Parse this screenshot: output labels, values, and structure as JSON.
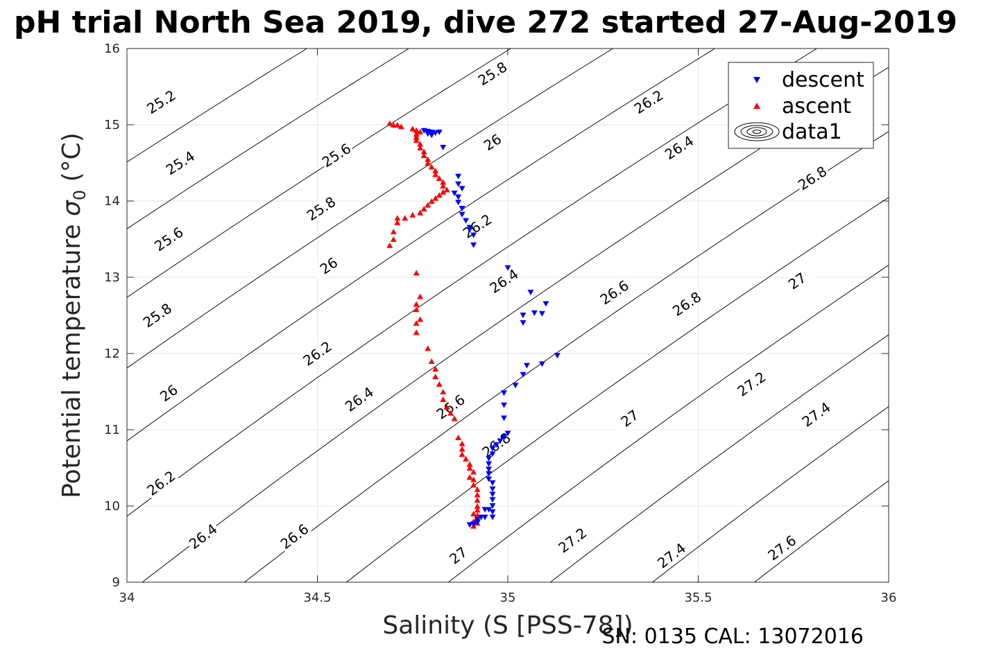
{
  "chart_data": {
    "type": "scatter",
    "title": "pH trial North Sea 2019, dive 272 started 27-Aug-2019",
    "xlabel": "Salinity (S [PSS-78])",
    "ylabel_main": "Potential temperature",
    "ylabel_sigma": "σ",
    "ylabel_sub": "0",
    "ylabel_unit": "(°C)",
    "xlim": [
      34,
      36
    ],
    "ylim": [
      9,
      16
    ],
    "xticks": [
      34,
      34.5,
      35,
      35.5,
      36
    ],
    "xtick_labels": [
      "34",
      "34.5",
      "35",
      "35.5",
      "36"
    ],
    "yticks": [
      9,
      10,
      11,
      12,
      13,
      14,
      15,
      16
    ],
    "ytick_labels": [
      "9",
      "10",
      "11",
      "12",
      "13",
      "14",
      "15",
      "16"
    ],
    "grid": true,
    "legend_position": "top-right",
    "annotation": "SN: 0135  CAL: 13072016",
    "series": [
      {
        "name": "descent",
        "marker": "triangle-down",
        "color": "#0000ff",
        "points": [
          [
            34.78,
            14.92
          ],
          [
            34.79,
            14.91
          ],
          [
            34.8,
            14.9
          ],
          [
            34.81,
            14.89
          ],
          [
            34.82,
            14.9
          ],
          [
            34.8,
            14.86
          ],
          [
            34.79,
            14.88
          ],
          [
            34.83,
            14.7
          ],
          [
            34.87,
            14.32
          ],
          [
            34.87,
            14.22
          ],
          [
            34.88,
            14.16
          ],
          [
            34.86,
            14.1
          ],
          [
            34.87,
            14.05
          ],
          [
            34.87,
            13.98
          ],
          [
            34.88,
            13.9
          ],
          [
            34.88,
            13.82
          ],
          [
            34.89,
            13.74
          ],
          [
            34.9,
            13.65
          ],
          [
            34.91,
            13.55
          ],
          [
            34.9,
            13.62
          ],
          [
            34.91,
            13.42
          ],
          [
            35.0,
            13.12
          ],
          [
            35.06,
            12.8
          ],
          [
            35.1,
            12.65
          ],
          [
            35.07,
            12.53
          ],
          [
            35.04,
            12.5
          ],
          [
            35.09,
            12.52
          ],
          [
            35.04,
            12.4
          ],
          [
            35.13,
            11.97
          ],
          [
            35.09,
            11.86
          ],
          [
            35.05,
            11.84
          ],
          [
            35.04,
            11.72
          ],
          [
            35.02,
            11.58
          ],
          [
            34.99,
            11.48
          ],
          [
            34.99,
            11.32
          ],
          [
            34.99,
            11.15
          ],
          [
            35.0,
            10.95
          ],
          [
            34.99,
            10.9
          ],
          [
            34.98,
            10.85
          ],
          [
            34.97,
            10.8
          ],
          [
            34.96,
            10.75
          ],
          [
            34.96,
            10.68
          ],
          [
            34.95,
            10.62
          ],
          [
            34.95,
            10.55
          ],
          [
            34.95,
            10.48
          ],
          [
            34.95,
            10.42
          ],
          [
            34.95,
            10.35
          ],
          [
            34.96,
            10.3
          ],
          [
            34.96,
            10.22
          ],
          [
            34.96,
            10.15
          ],
          [
            34.96,
            10.08
          ],
          [
            34.96,
            10.0
          ],
          [
            34.95,
            9.95
          ],
          [
            34.96,
            9.92
          ],
          [
            34.94,
            9.95
          ],
          [
            34.96,
            9.85
          ],
          [
            34.94,
            9.85
          ],
          [
            34.93,
            9.85
          ],
          [
            34.92,
            9.82
          ],
          [
            34.92,
            9.78
          ],
          [
            34.91,
            9.76
          ],
          [
            34.9,
            9.75
          ]
        ]
      },
      {
        "name": "ascent",
        "marker": "triangle-up",
        "color": "#ff0000",
        "points": [
          [
            34.69,
            15.02
          ],
          [
            34.7,
            15.0
          ],
          [
            34.71,
            15.0
          ],
          [
            34.72,
            14.98
          ],
          [
            34.75,
            14.95
          ],
          [
            34.76,
            14.93
          ],
          [
            34.77,
            14.91
          ],
          [
            34.76,
            14.88
          ],
          [
            34.76,
            14.84
          ],
          [
            34.76,
            14.8
          ],
          [
            34.77,
            14.75
          ],
          [
            34.77,
            14.7
          ],
          [
            34.78,
            14.65
          ],
          [
            34.78,
            14.6
          ],
          [
            34.79,
            14.55
          ],
          [
            34.79,
            14.5
          ],
          [
            34.8,
            14.45
          ],
          [
            34.81,
            14.4
          ],
          [
            34.81,
            14.35
          ],
          [
            34.82,
            14.3
          ],
          [
            34.83,
            14.25
          ],
          [
            34.83,
            14.2
          ],
          [
            34.84,
            14.15
          ],
          [
            34.83,
            14.12
          ],
          [
            34.82,
            14.08
          ],
          [
            34.81,
            14.04
          ],
          [
            34.8,
            14.0
          ],
          [
            34.79,
            13.95
          ],
          [
            34.78,
            13.9
          ],
          [
            34.77,
            13.85
          ],
          [
            34.75,
            13.82
          ],
          [
            34.73,
            13.78
          ],
          [
            34.71,
            13.78
          ],
          [
            34.71,
            13.72
          ],
          [
            34.7,
            13.6
          ],
          [
            34.7,
            13.5
          ],
          [
            34.69,
            13.42
          ],
          [
            34.76,
            13.06
          ],
          [
            34.77,
            12.75
          ],
          [
            34.76,
            12.65
          ],
          [
            34.76,
            12.58
          ],
          [
            34.77,
            12.45
          ],
          [
            34.76,
            12.4
          ],
          [
            34.76,
            12.28
          ],
          [
            34.79,
            12.07
          ],
          [
            34.8,
            11.9
          ],
          [
            34.81,
            11.8
          ],
          [
            34.81,
            11.7
          ],
          [
            34.82,
            11.6
          ],
          [
            34.83,
            11.5
          ],
          [
            34.83,
            11.4
          ],
          [
            34.84,
            11.3
          ],
          [
            34.85,
            11.22
          ],
          [
            34.86,
            11.15
          ],
          [
            34.87,
            10.9
          ],
          [
            34.88,
            10.82
          ],
          [
            34.88,
            10.75
          ],
          [
            34.88,
            10.68
          ],
          [
            34.89,
            10.62
          ],
          [
            34.9,
            10.55
          ],
          [
            34.9,
            10.5
          ],
          [
            34.91,
            10.45
          ],
          [
            34.9,
            10.38
          ],
          [
            34.91,
            10.35
          ],
          [
            34.91,
            10.28
          ],
          [
            34.92,
            10.22
          ],
          [
            34.92,
            10.15
          ],
          [
            34.92,
            10.08
          ],
          [
            34.92,
            10.0
          ],
          [
            34.92,
            9.95
          ],
          [
            34.91,
            9.9
          ],
          [
            34.92,
            9.88
          ],
          [
            34.92,
            9.85
          ],
          [
            34.91,
            9.8
          ],
          [
            34.92,
            9.78
          ],
          [
            34.91,
            9.74
          ]
        ]
      },
      {
        "name": "data1",
        "marker": "contour"
      }
    ],
    "contours": {
      "levels": [
        25.2,
        25.4,
        25.6,
        25.8,
        26,
        26.2,
        26.4,
        26.6,
        26.8,
        27,
        27.2,
        27.4,
        27.6
      ],
      "line_color": "#000000",
      "labels": [
        {
          "text": "25.2",
          "s": 34.09,
          "t": 15.3
        },
        {
          "text": "25.4",
          "s": 34.14,
          "t": 14.5
        },
        {
          "text": "25.6",
          "s": 34.11,
          "t": 13.5
        },
        {
          "text": "25.8",
          "s": 34.08,
          "t": 12.5
        },
        {
          "text": "26",
          "s": 34.11,
          "t": 11.48
        },
        {
          "text": "26.2",
          "s": 34.09,
          "t": 10.3
        },
        {
          "text": "26.4",
          "s": 34.2,
          "t": 9.6
        },
        {
          "text": "25.6",
          "s": 34.55,
          "t": 14.6
        },
        {
          "text": "25.8",
          "s": 34.51,
          "t": 13.9
        },
        {
          "text": "26",
          "s": 34.53,
          "t": 13.15
        },
        {
          "text": "26.2",
          "s": 34.5,
          "t": 12.0
        },
        {
          "text": "26.4",
          "s": 34.61,
          "t": 11.4
        },
        {
          "text": "26.6",
          "s": 34.44,
          "t": 9.6
        },
        {
          "text": "25.8",
          "s": 34.96,
          "t": 15.67
        },
        {
          "text": "26",
          "s": 34.96,
          "t": 14.77
        },
        {
          "text": "26.2",
          "s": 34.92,
          "t": 13.67
        },
        {
          "text": "26.4",
          "s": 34.99,
          "t": 12.95
        },
        {
          "text": "26.6",
          "s": 34.85,
          "t": 11.3
        },
        {
          "text": "26.8",
          "s": 34.97,
          "t": 10.8
        },
        {
          "text": "27",
          "s": 34.87,
          "t": 9.35
        },
        {
          "text": "26.2",
          "s": 35.37,
          "t": 15.3
        },
        {
          "text": "26.4",
          "s": 35.45,
          "t": 14.7
        },
        {
          "text": "26.6",
          "s": 35.28,
          "t": 12.8
        },
        {
          "text": "26.8",
          "s": 35.47,
          "t": 12.65
        },
        {
          "text": "27",
          "s": 35.32,
          "t": 11.15
        },
        {
          "text": "27.2",
          "s": 35.17,
          "t": 9.55
        },
        {
          "text": "26.8",
          "s": 35.8,
          "t": 14.3
        },
        {
          "text": "27",
          "s": 35.76,
          "t": 12.95
        },
        {
          "text": "27.2",
          "s": 35.64,
          "t": 11.6
        },
        {
          "text": "27.4",
          "s": 35.81,
          "t": 11.2
        },
        {
          "text": "27.4",
          "s": 35.43,
          "t": 9.35
        },
        {
          "text": "27.6",
          "s": 35.72,
          "t": 9.45
        }
      ]
    }
  }
}
